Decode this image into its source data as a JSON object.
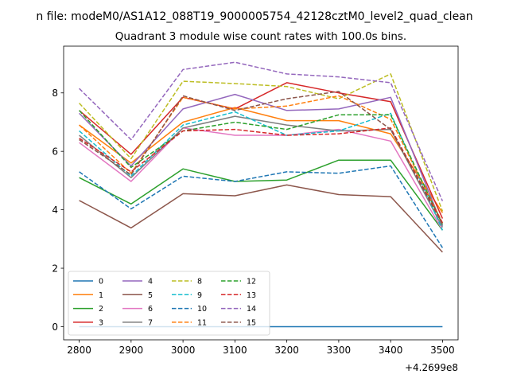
{
  "chart_data": {
    "type": "line",
    "suptitle": "n file: modeM0/AS1A12_088T19_9000005754_42128cztM0_level2_quad_clean",
    "title": "Quadrant 3 module wise count rates with 100.0s bins.",
    "xlabel": "",
    "ylabel": "",
    "x_offset_label": "+4.2699e8",
    "x": [
      2800,
      2900,
      3000,
      3100,
      3200,
      3300,
      3400,
      3500
    ],
    "xticks": [
      2800,
      2900,
      3000,
      3100,
      3200,
      3300,
      3400,
      3500
    ],
    "xlim": [
      2770,
      3530
    ],
    "yticks": [
      0,
      2,
      4,
      6,
      8
    ],
    "ylim": [
      -0.45,
      9.6
    ],
    "grid": false,
    "legend_position": "lower-left",
    "legend_columns": 4,
    "series": [
      {
        "name": "0",
        "color": "#1f77b4",
        "dash": false,
        "values": [
          0,
          0,
          0,
          0,
          0,
          0,
          0,
          0
        ]
      },
      {
        "name": "1",
        "color": "#ff7f0e",
        "dash": false,
        "values": [
          6.9,
          5.6,
          7.0,
          7.5,
          7.05,
          7.05,
          6.6,
          3.9
        ]
      },
      {
        "name": "2",
        "color": "#2ca02c",
        "dash": false,
        "values": [
          5.1,
          4.2,
          5.4,
          4.97,
          5.02,
          5.7,
          5.7,
          3.3
        ]
      },
      {
        "name": "3",
        "color": "#d62728",
        "dash": false,
        "values": [
          7.4,
          5.9,
          7.85,
          7.45,
          8.35,
          8.0,
          7.7,
          3.7
        ]
      },
      {
        "name": "4",
        "color": "#9467bd",
        "dash": false,
        "values": [
          7.3,
          5.5,
          7.45,
          7.95,
          7.4,
          7.45,
          7.85,
          3.45
        ]
      },
      {
        "name": "5",
        "color": "#8c564b",
        "dash": false,
        "values": [
          4.32,
          3.38,
          4.55,
          4.48,
          4.85,
          4.52,
          4.45,
          2.55
        ]
      },
      {
        "name": "6",
        "color": "#e377c2",
        "dash": false,
        "values": [
          6.3,
          4.97,
          6.8,
          6.55,
          6.55,
          6.75,
          6.35,
          3.3
        ]
      },
      {
        "name": "7",
        "color": "#7f7f7f",
        "dash": false,
        "values": [
          6.55,
          5.1,
          6.8,
          7.2,
          6.9,
          6.7,
          6.75,
          3.4
        ]
      },
      {
        "name": "8",
        "color": "#bcbd22",
        "dash": true,
        "values": [
          7.65,
          5.75,
          8.4,
          8.32,
          8.22,
          7.8,
          8.65,
          3.95
        ]
      },
      {
        "name": "9",
        "color": "#17becf",
        "dash": true,
        "values": [
          6.7,
          5.15,
          6.9,
          7.35,
          6.55,
          6.7,
          7.3,
          3.3
        ]
      },
      {
        "name": "10",
        "color": "#1f77b4",
        "dash": true,
        "values": [
          5.3,
          4.03,
          5.15,
          4.97,
          5.3,
          5.25,
          5.5,
          2.7
        ]
      },
      {
        "name": "11",
        "color": "#ff7f0e",
        "dash": true,
        "values": [
          6.9,
          5.25,
          7.85,
          7.45,
          7.55,
          7.9,
          7.1,
          3.55
        ]
      },
      {
        "name": "12",
        "color": "#2ca02c",
        "dash": true,
        "values": [
          7.4,
          5.45,
          6.7,
          7.0,
          6.75,
          7.25,
          7.25,
          3.5
        ]
      },
      {
        "name": "13",
        "color": "#d62728",
        "dash": true,
        "values": [
          6.45,
          5.3,
          6.7,
          6.75,
          6.55,
          6.6,
          6.8,
          3.55
        ]
      },
      {
        "name": "14",
        "color": "#9467bd",
        "dash": true,
        "values": [
          8.15,
          6.4,
          8.8,
          9.05,
          8.65,
          8.55,
          8.35,
          4.3
        ]
      },
      {
        "name": "15",
        "color": "#8c564b",
        "dash": true,
        "values": [
          6.4,
          5.2,
          7.9,
          7.4,
          7.8,
          8.05,
          6.75,
          3.5
        ]
      }
    ]
  }
}
